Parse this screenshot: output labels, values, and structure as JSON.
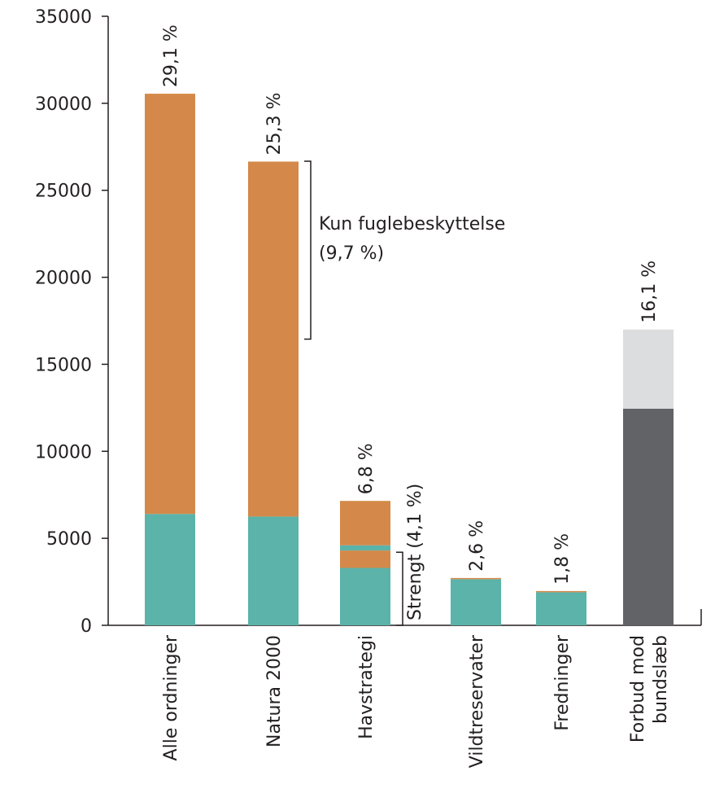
{
  "chart_data": {
    "type": "stacked_bar",
    "categories": [
      "Alle ordninger",
      "Natura 2000",
      "Havstrategi",
      "Vildtreservater",
      "Fredninger",
      [
        "Forbud mod",
        "bundslæb"
      ]
    ],
    "series": [
      {
        "color": "#5bb3a9",
        "values": [
          6400,
          6250,
          3300,
          2650,
          1900,
          null
        ]
      },
      {
        "color": "#d4894a",
        "values": [
          24150,
          20400,
          1000,
          70,
          70,
          null
        ]
      },
      {
        "color": "#5bb3a9",
        "values": [
          null,
          null,
          300,
          null,
          null,
          null
        ]
      },
      {
        "color": "#d4894a",
        "values": [
          null,
          null,
          2550,
          null,
          null,
          null
        ]
      },
      {
        "color": "#626366",
        "values": [
          null,
          null,
          null,
          null,
          null,
          12450
        ]
      },
      {
        "color": "#dcdddf",
        "values": [
          null,
          null,
          null,
          null,
          null,
          4550
        ]
      }
    ],
    "percent_labels": [
      "29,1 %",
      "25,3 %",
      "6,8 %",
      "2,6 %",
      "1,8 %",
      "16,1 %"
    ],
    "annotations": [
      {
        "lines": [
          "Kun fuglebeskyttelse",
          "(9,7 %)"
        ],
        "category": 1,
        "range": [
          16450,
          26670
        ]
      },
      {
        "lines": [
          "Strengt (4,1 %)"
        ],
        "category": 2,
        "range": [
          0,
          4200
        ]
      }
    ],
    "ylim": [
      0,
      35000
    ],
    "yticks": [
      0,
      5000,
      10000,
      15000,
      20000,
      25000,
      30000,
      35000
    ]
  }
}
